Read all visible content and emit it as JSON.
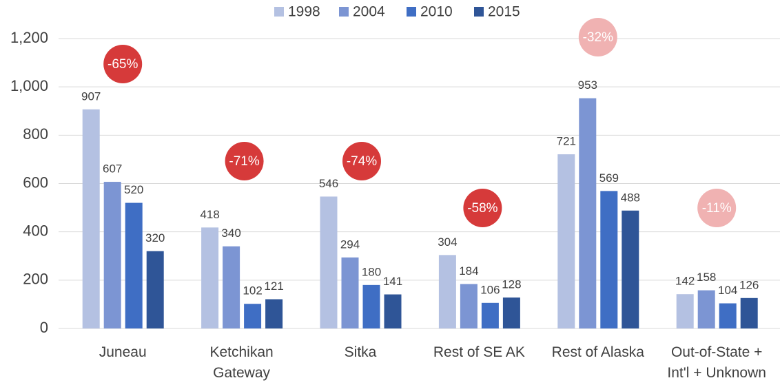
{
  "chart_data": {
    "type": "bar",
    "categories": [
      "Juneau",
      "Ketchikan\nGateway",
      "Sitka",
      "Rest of SE AK",
      "Rest of Alaska",
      "Out-of-State +\nInt'l + Unknown"
    ],
    "series": [
      {
        "name": "1998",
        "color": "#b4c1e2",
        "values": [
          907,
          418,
          546,
          304,
          721,
          142
        ]
      },
      {
        "name": "2004",
        "color": "#7c95d3",
        "values": [
          607,
          340,
          294,
          184,
          953,
          158
        ]
      },
      {
        "name": "2010",
        "color": "#3f6ec4",
        "values": [
          520,
          102,
          180,
          106,
          569,
          104
        ]
      },
      {
        "name": "2015",
        "color": "#2f5597",
        "values": [
          320,
          121,
          141,
          128,
          488,
          126
        ]
      }
    ],
    "annotations": [
      "-65%",
      "-71%",
      "-74%",
      "-58%",
      "-32%",
      "-11%"
    ],
    "annotation_colors": [
      "#d63a3a",
      "#d63a3a",
      "#d63a3a",
      "#d63a3a",
      "#f0b2b2",
      "#f0b2b2"
    ],
    "ylim": [
      0,
      1200
    ],
    "yticks": [
      0,
      200,
      400,
      600,
      800,
      {
        "value": 1000,
        "label": "1,000"
      },
      {
        "value": 1200,
        "label": "1,200"
      }
    ],
    "grid": true,
    "legend": "top"
  }
}
